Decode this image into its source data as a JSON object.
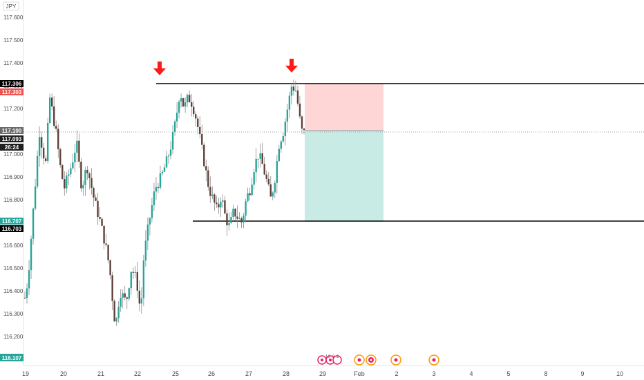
{
  "symbol": {
    "currency": "JPY"
  },
  "colors": {
    "up": "#26a69a",
    "down": "#ef5350",
    "candle_body_down": "#5d4037",
    "stop_zone": "#ffd6d6",
    "target_zone": "#c9ebe6",
    "hline": "#000000",
    "arrow": "#ff1a1a",
    "price_line": "#9e9e9e"
  },
  "badges": {
    "b1": "117.306",
    "b2": "117.303",
    "b3": "117.100",
    "b4": "117.093",
    "b5": "26:24",
    "b6": "116.707",
    "b7": "116.703",
    "b8": "116.107"
  },
  "event_markers": {
    "counts": [
      "10",
      "3",
      "2"
    ]
  },
  "chart_data": {
    "type": "candlestick",
    "title": "",
    "ylim": [
      116.1,
      117.65
    ],
    "y_ticks": [
      "117.600",
      "117.500",
      "117.400",
      "117.300",
      "117.200",
      "117.100",
      "117.000",
      "116.900",
      "116.800",
      "116.700",
      "116.600",
      "116.500",
      "116.400",
      "116.300",
      "116.200"
    ],
    "x_ticks": [
      "19",
      "20",
      "21",
      "22",
      "25",
      "26",
      "27",
      "28",
      "29",
      "Feb",
      "2",
      "3",
      "4",
      "5",
      "8",
      "9",
      "10"
    ],
    "horizontal_lines": [
      117.306,
      116.707
    ],
    "position": {
      "entry": 117.093,
      "stop": 117.306,
      "target": 116.707
    },
    "current_price": 117.093,
    "countdown": "26:24",
    "signals": [
      "down-arrow",
      "down-arrow"
    ],
    "series_path": [
      [
        0,
        116.37
      ],
      [
        3,
        116.45
      ],
      [
        8,
        116.75
      ],
      [
        14,
        117.1
      ],
      [
        20,
        116.95
      ],
      [
        24,
        117.25
      ],
      [
        30,
        117.1
      ],
      [
        34,
        116.95
      ],
      [
        38,
        116.85
      ],
      [
        45,
        116.95
      ],
      [
        50,
        117.05
      ],
      [
        55,
        116.85
      ],
      [
        60,
        116.95
      ],
      [
        67,
        116.8
      ],
      [
        73,
        116.7
      ],
      [
        78,
        116.6
      ],
      [
        82,
        116.5
      ],
      [
        86,
        116.3
      ],
      [
        88,
        116.25
      ],
      [
        92,
        116.4
      ],
      [
        98,
        116.35
      ],
      [
        103,
        116.5
      ],
      [
        108,
        116.45
      ],
      [
        112,
        116.3
      ],
      [
        115,
        116.55
      ],
      [
        120,
        116.7
      ],
      [
        126,
        116.85
      ],
      [
        132,
        116.9
      ],
      [
        138,
        116.98
      ],
      [
        142,
        117.05
      ],
      [
        146,
        117.15
      ],
      [
        150,
        117.28
      ],
      [
        154,
        117.2
      ],
      [
        158,
        117.25
      ],
      [
        162,
        117.22
      ],
      [
        166,
        117.15
      ],
      [
        170,
        117.05
      ],
      [
        174,
        116.95
      ],
      [
        178,
        116.85
      ],
      [
        182,
        116.8
      ],
      [
        186,
        116.75
      ],
      [
        190,
        116.82
      ],
      [
        194,
        116.72
      ],
      [
        198,
        116.68
      ],
      [
        202,
        116.75
      ],
      [
        206,
        116.72
      ],
      [
        210,
        116.7
      ],
      [
        214,
        116.8
      ],
      [
        218,
        116.85
      ],
      [
        222,
        116.95
      ],
      [
        226,
        117.0
      ],
      [
        230,
        116.95
      ],
      [
        234,
        116.88
      ],
      [
        238,
        116.8
      ],
      [
        242,
        116.9
      ],
      [
        246,
        117.05
      ],
      [
        250,
        117.1
      ],
      [
        254,
        117.2
      ],
      [
        258,
        117.3
      ],
      [
        262,
        117.28
      ],
      [
        264,
        117.22
      ],
      [
        266,
        117.15
      ],
      [
        268,
        117.1
      ],
      [
        270,
        117.093
      ]
    ]
  }
}
